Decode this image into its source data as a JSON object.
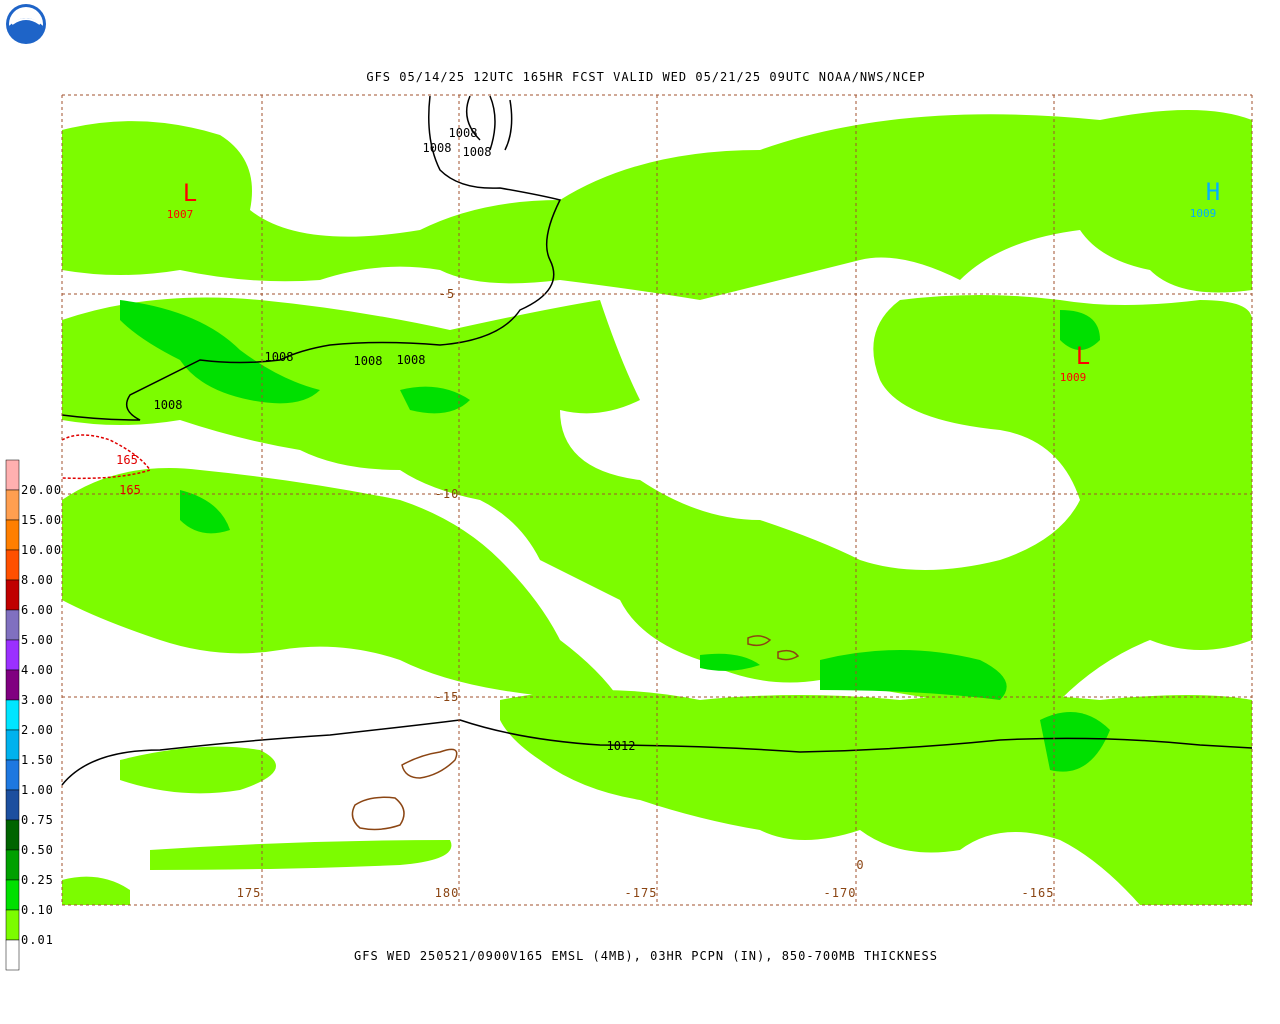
{
  "header": {
    "title": "GFS 05/14/25 12UTC 165HR FCST VALID WED 05/21/25 09UTC NOAA/NWS/NCEP"
  },
  "footer": {
    "caption": "GFS WED 250521/0900V165 EMSL (4MB), 03HR PCPN (IN), 850-700MB THICKNESS"
  },
  "legend": {
    "boxes": [
      "#ffb0b0",
      "#ff9f50",
      "#ff7f00",
      "#ff5000",
      "#c00000",
      "#8070c0",
      "#9b30ff",
      "#800080",
      "#00e5ff",
      "#00b2ee",
      "#1e78e0",
      "#1c4f9f",
      "#006400",
      "#00a000",
      "#00e000",
      "#7cfc00",
      "#ffffff"
    ],
    "labels": [
      "20.00",
      "15.00",
      "10.00",
      "8.00",
      "6.00",
      "5.00",
      "4.00",
      "3.00",
      "2.00",
      "1.50",
      "1.00",
      "0.75",
      "0.50",
      "0.25",
      "0.10",
      "0.01"
    ]
  },
  "map": {
    "lon_labels": [
      "175",
      "180",
      "-175",
      "-170",
      "-165"
    ],
    "lat_labels": [
      "-5",
      "-10",
      "-15"
    ],
    "centers": [
      {
        "symbol": "L",
        "pressure": "1007",
        "color": "#ff0000"
      },
      {
        "symbol": "H",
        "pressure": "1009",
        "color": "#00b0ff"
      },
      {
        "symbol": "L",
        "pressure": "1009",
        "color": "#ff0000"
      }
    ],
    "isobar_labels": [
      "1008",
      "1008",
      "1008",
      "1008",
      "1008",
      "1008",
      "1008",
      "1012"
    ],
    "thickness_labels": [
      "165",
      "165",
      "0"
    ]
  }
}
